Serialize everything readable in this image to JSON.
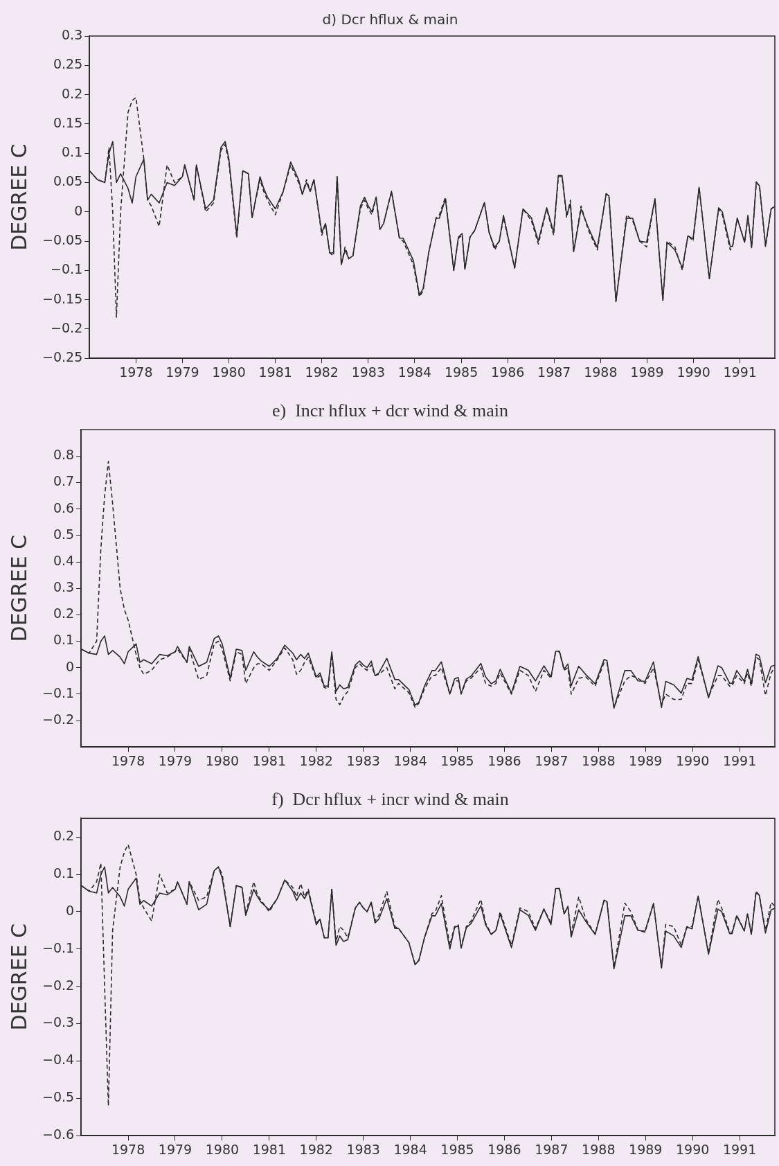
{
  "chart_data": [
    {
      "type": "line",
      "title": "d) Dcr hflux & main",
      "ylabel": "DEGREE C",
      "xlim": [
        1977,
        1991.75
      ],
      "xticks": [
        1978,
        1979,
        1980,
        1981,
        1982,
        1983,
        1984,
        1985,
        1986,
        1987,
        1988,
        1989,
        1990,
        1991
      ],
      "ylim": [
        -0.25,
        0.3
      ],
      "yticks": [
        -0.25,
        -0.2,
        -0.15,
        -0.1,
        -0.05,
        0,
        0.05,
        0.1,
        0.15,
        0.2,
        0.25,
        0.3
      ],
      "grid": false,
      "legend": false,
      "marker": "none",
      "x": [
        1977.0,
        1977.17,
        1977.33,
        1977.42,
        1977.5,
        1977.58,
        1977.67,
        1977.83,
        1977.92,
        1978.0,
        1978.17,
        1978.25,
        1978.33,
        1978.5,
        1978.67,
        1978.83,
        1979.0,
        1979.05,
        1979.25,
        1979.3,
        1979.5,
        1979.67,
        1979.83,
        1979.92,
        1980.0,
        1980.17,
        1980.3,
        1980.42,
        1980.5,
        1980.67,
        1980.75,
        1980.83,
        1981.0,
        1981.17,
        1981.33,
        1981.5,
        1981.58,
        1981.67,
        1981.75,
        1981.83,
        1982.0,
        1982.08,
        1982.17,
        1982.25,
        1982.33,
        1982.42,
        1982.5,
        1982.58,
        1982.67,
        1982.83,
        1982.92,
        1983.0,
        1983.08,
        1983.17,
        1983.25,
        1983.33,
        1983.5,
        1983.67,
        1983.75,
        1983.97,
        1984.1,
        1984.18,
        1984.3,
        1984.46,
        1984.53,
        1984.66,
        1984.84,
        1984.94,
        1985.02,
        1985.08,
        1985.19,
        1985.29,
        1985.5,
        1985.6,
        1985.72,
        1985.82,
        1985.91,
        1986.15,
        1986.33,
        1986.51,
        1986.66,
        1986.84,
        1986.99,
        1987.09,
        1987.17,
        1987.27,
        1987.35,
        1987.42,
        1987.58,
        1987.73,
        1987.93,
        1988.12,
        1988.18,
        1988.33,
        1988.56,
        1988.69,
        1988.84,
        1988.99,
        1989.17,
        1989.34,
        1989.43,
        1989.6,
        1989.76,
        1989.88,
        1989.99,
        1990.12,
        1990.34,
        1990.54,
        1990.62,
        1990.79,
        1990.84,
        1990.94,
        1991.1,
        1991.17,
        1991.25,
        1991.35,
        1991.42,
        1991.55,
        1991.67,
        1991.75
      ],
      "series": [
        {
          "color": "#2a2a2a",
          "line_style": "solid",
          "values": [
            0.07,
            0.055,
            0.05,
            0.1,
            0.12,
            0.05,
            0.065,
            0.04,
            0.015,
            0.06,
            0.09,
            0.02,
            0.03,
            0.015,
            0.05,
            0.045,
            0.06,
            0.08,
            0.02,
            0.08,
            0.005,
            0.02,
            0.11,
            0.12,
            0.09,
            -0.04,
            0.07,
            0.065,
            -0.01,
            0.06,
            0.04,
            0.025,
            0.005,
            0.035,
            0.085,
            0.055,
            0.03,
            0.05,
            0.035,
            0.055,
            -0.035,
            -0.02,
            -0.07,
            -0.07,
            0.06,
            -0.09,
            -0.065,
            -0.08,
            -0.075,
            0.01,
            0.025,
            0.01,
            0,
            0.025,
            -0.03,
            -0.02,
            0.035,
            -0.045,
            -0.045,
            -0.083,
            -0.142,
            -0.131,
            -0.07,
            -0.011,
            -0.011,
            0.022,
            -0.1,
            -0.043,
            -0.037,
            -0.098,
            -0.043,
            -0.032,
            0.016,
            -0.035,
            -0.061,
            -0.05,
            -0.006,
            -0.096,
            0.005,
            -0.01,
            -0.05,
            0.007,
            -0.035,
            0.062,
            0.062,
            -0.006,
            0.014,
            -0.068,
            0.005,
            -0.026,
            -0.061,
            0.031,
            0.027,
            -0.153,
            -0.011,
            -0.011,
            -0.05,
            -0.052,
            0.022,
            -0.151,
            -0.052,
            -0.065,
            -0.096,
            -0.041,
            -0.046,
            0.042,
            -0.114,
            0.007,
            0,
            -0.059,
            -0.059,
            -0.011,
            -0.052,
            -0.006,
            -0.061,
            0.051,
            0.044,
            -0.057,
            0.005,
            0.009
          ]
        },
        {
          "color": "#2a2a2a",
          "line_style": "dashed",
          "values": [
            0.07,
            0.055,
            0.05,
            0.11,
            0.0,
            -0.18,
            0.0,
            0.17,
            0.19,
            0.195,
            0.09,
            0.02,
            0.01,
            -0.025,
            0.08,
            0.05,
            0.06,
            0.08,
            0.02,
            0.08,
            0.0,
            0.015,
            0.105,
            0.115,
            0.085,
            -0.045,
            0.07,
            0.065,
            -0.01,
            0.055,
            0.035,
            0.02,
            -0.005,
            0.035,
            0.08,
            0.05,
            0.03,
            0.055,
            0.035,
            0.055,
            -0.04,
            -0.02,
            -0.07,
            -0.075,
            0.06,
            -0.09,
            -0.06,
            -0.08,
            -0.075,
            0.005,
            0.02,
            0.005,
            -0.005,
            0.025,
            -0.03,
            -0.02,
            0.035,
            -0.045,
            -0.05,
            -0.09,
            -0.145,
            -0.135,
            -0.07,
            -0.01,
            -0.005,
            0.025,
            -0.1,
            -0.045,
            -0.04,
            -0.098,
            -0.043,
            -0.032,
            0.016,
            -0.035,
            -0.065,
            -0.05,
            -0.01,
            -0.096,
            0.005,
            -0.015,
            -0.055,
            0.005,
            -0.04,
            0.06,
            0.06,
            -0.01,
            0.02,
            -0.068,
            0.01,
            -0.03,
            -0.065,
            0.031,
            0.027,
            -0.153,
            -0.005,
            -0.015,
            -0.05,
            -0.06,
            0.022,
            -0.151,
            -0.05,
            -0.06,
            -0.1,
            -0.04,
            -0.05,
            0.042,
            -0.114,
            0.005,
            -0.005,
            -0.065,
            -0.06,
            -0.011,
            -0.052,
            -0.01,
            -0.061,
            0.05,
            0.044,
            -0.06,
            0.005,
            0.01
          ]
        }
      ]
    },
    {
      "type": "line",
      "title": "e)  Incr hflux + dcr wind & main",
      "ylabel": "DEGREE C",
      "xlim": [
        1977,
        1991.75
      ],
      "xticks": [
        1978,
        1979,
        1980,
        1981,
        1982,
        1983,
        1984,
        1985,
        1986,
        1987,
        1988,
        1989,
        1990,
        1991
      ],
      "ylim": [
        -0.3,
        0.9
      ],
      "yticks": [
        -0.2,
        -0.1,
        0,
        0.1,
        0.2,
        0.3,
        0.4,
        0.5,
        0.6,
        0.7,
        0.8
      ],
      "grid": false,
      "legend": false,
      "marker": "none",
      "x": [
        1977.0,
        1977.17,
        1977.33,
        1977.42,
        1977.5,
        1977.58,
        1977.67,
        1977.83,
        1977.92,
        1978.0,
        1978.17,
        1978.25,
        1978.33,
        1978.5,
        1978.67,
        1978.83,
        1979.0,
        1979.05,
        1979.25,
        1979.3,
        1979.5,
        1979.67,
        1979.83,
        1979.92,
        1980.0,
        1980.17,
        1980.3,
        1980.42,
        1980.5,
        1980.67,
        1980.75,
        1980.83,
        1981.0,
        1981.17,
        1981.33,
        1981.5,
        1981.58,
        1981.67,
        1981.75,
        1981.83,
        1982.0,
        1982.08,
        1982.17,
        1982.25,
        1982.33,
        1982.42,
        1982.5,
        1982.58,
        1982.67,
        1982.83,
        1982.92,
        1983.0,
        1983.08,
        1983.17,
        1983.25,
        1983.33,
        1983.5,
        1983.67,
        1983.75,
        1983.97,
        1984.1,
        1984.18,
        1984.3,
        1984.46,
        1984.53,
        1984.66,
        1984.84,
        1984.94,
        1985.02,
        1985.08,
        1985.19,
        1985.29,
        1985.5,
        1985.6,
        1985.72,
        1985.82,
        1985.91,
        1986.15,
        1986.33,
        1986.51,
        1986.66,
        1986.84,
        1986.99,
        1987.09,
        1987.17,
        1987.27,
        1987.35,
        1987.42,
        1987.58,
        1987.73,
        1987.93,
        1988.12,
        1988.18,
        1988.33,
        1988.56,
        1988.69,
        1988.84,
        1988.99,
        1989.17,
        1989.34,
        1989.43,
        1989.6,
        1989.76,
        1989.88,
        1989.99,
        1990.12,
        1990.34,
        1990.54,
        1990.62,
        1990.79,
        1990.84,
        1990.94,
        1991.1,
        1991.17,
        1991.25,
        1991.35,
        1991.42,
        1991.55,
        1991.67,
        1991.75
      ],
      "series": [
        {
          "color": "#2a2a2a",
          "line_style": "solid",
          "values": [
            0.07,
            0.055,
            0.05,
            0.1,
            0.12,
            0.05,
            0.065,
            0.04,
            0.015,
            0.06,
            0.09,
            0.02,
            0.03,
            0.015,
            0.05,
            0.045,
            0.06,
            0.08,
            0.02,
            0.08,
            0.005,
            0.02,
            0.11,
            0.12,
            0.09,
            -0.04,
            0.07,
            0.065,
            -0.01,
            0.06,
            0.04,
            0.025,
            0.005,
            0.035,
            0.085,
            0.055,
            0.03,
            0.05,
            0.035,
            0.055,
            -0.035,
            -0.02,
            -0.07,
            -0.07,
            0.06,
            -0.09,
            -0.065,
            -0.08,
            -0.075,
            0.01,
            0.025,
            0.01,
            0,
            0.025,
            -0.03,
            -0.02,
            0.035,
            -0.045,
            -0.045,
            -0.083,
            -0.142,
            -0.131,
            -0.07,
            -0.011,
            -0.011,
            0.022,
            -0.1,
            -0.043,
            -0.037,
            -0.098,
            -0.043,
            -0.032,
            0.016,
            -0.035,
            -0.061,
            -0.05,
            -0.006,
            -0.096,
            0.005,
            -0.01,
            -0.05,
            0.007,
            -0.035,
            0.062,
            0.062,
            -0.006,
            0.014,
            -0.068,
            0.005,
            -0.026,
            -0.061,
            0.031,
            0.027,
            -0.153,
            -0.011,
            -0.011,
            -0.05,
            -0.052,
            0.022,
            -0.151,
            -0.052,
            -0.065,
            -0.096,
            -0.041,
            -0.046,
            0.042,
            -0.114,
            0.007,
            0,
            -0.059,
            -0.059,
            -0.011,
            -0.052,
            -0.006,
            -0.061,
            0.051,
            0.044,
            -0.057,
            0.005,
            0.009
          ]
        },
        {
          "color": "#2a2a2a",
          "line_style": "dashed",
          "values": [
            0.07,
            0.055,
            0.1,
            0.45,
            0.65,
            0.78,
            0.62,
            0.3,
            0.22,
            0.18,
            0.05,
            0.0,
            -0.025,
            -0.01,
            0.03,
            0.04,
            0.06,
            0.07,
            0.02,
            0.07,
            -0.045,
            -0.03,
            0.09,
            0.1,
            0.07,
            -0.05,
            0.06,
            0.05,
            -0.06,
            0.0,
            0.015,
            0.015,
            -0.01,
            0.03,
            0.075,
            0.03,
            -0.025,
            -0.01,
            0.02,
            0.04,
            -0.04,
            -0.03,
            -0.075,
            -0.08,
            0.05,
            -0.12,
            -0.14,
            -0.11,
            -0.09,
            0.0,
            0.015,
            0.0,
            -0.01,
            0.01,
            -0.03,
            -0.025,
            0.0,
            -0.08,
            -0.06,
            -0.095,
            -0.15,
            -0.135,
            -0.08,
            -0.03,
            -0.03,
            0.0,
            -0.1,
            -0.05,
            -0.05,
            -0.1,
            -0.05,
            -0.04,
            0.0,
            -0.06,
            -0.07,
            -0.06,
            -0.02,
            -0.1,
            -0.01,
            -0.03,
            -0.09,
            -0.01,
            -0.04,
            0.06,
            0.06,
            -0.01,
            0.0,
            -0.1,
            -0.04,
            -0.035,
            -0.07,
            0.02,
            0.02,
            -0.15,
            -0.05,
            -0.03,
            -0.04,
            -0.06,
            0.0,
            -0.14,
            -0.1,
            -0.12,
            -0.12,
            -0.06,
            -0.06,
            0.03,
            -0.11,
            -0.03,
            -0.03,
            -0.07,
            -0.07,
            -0.03,
            -0.06,
            -0.02,
            -0.07,
            0.04,
            0.03,
            -0.105,
            -0.02,
            0.0
          ]
        }
      ]
    },
    {
      "type": "line",
      "title": "f)  Dcr hflux + incr wind & main",
      "ylabel": "DEGREE C",
      "xlim": [
        1977,
        1991.75
      ],
      "xticks": [
        1978,
        1979,
        1980,
        1981,
        1982,
        1983,
        1984,
        1985,
        1986,
        1987,
        1988,
        1989,
        1990,
        1991
      ],
      "ylim": [
        -0.6,
        0.25
      ],
      "yticks": [
        -0.6,
        -0.5,
        -0.4,
        -0.3,
        -0.2,
        -0.1,
        0,
        0.1,
        0.2
      ],
      "grid": false,
      "legend": false,
      "marker": "none",
      "x": [
        1977.0,
        1977.17,
        1977.33,
        1977.42,
        1977.5,
        1977.58,
        1977.67,
        1977.83,
        1977.92,
        1978.0,
        1978.17,
        1978.25,
        1978.33,
        1978.5,
        1978.67,
        1978.83,
        1979.0,
        1979.05,
        1979.25,
        1979.3,
        1979.5,
        1979.67,
        1979.83,
        1979.92,
        1980.0,
        1980.17,
        1980.3,
        1980.42,
        1980.5,
        1980.67,
        1980.75,
        1980.83,
        1981.0,
        1981.17,
        1981.33,
        1981.5,
        1981.58,
        1981.67,
        1981.75,
        1981.83,
        1982.0,
        1982.08,
        1982.17,
        1982.25,
        1982.33,
        1982.42,
        1982.5,
        1982.58,
        1982.67,
        1982.83,
        1982.92,
        1983.0,
        1983.08,
        1983.17,
        1983.25,
        1983.33,
        1983.5,
        1983.67,
        1983.75,
        1983.97,
        1984.1,
        1984.18,
        1984.3,
        1984.46,
        1984.53,
        1984.66,
        1984.84,
        1984.94,
        1985.02,
        1985.08,
        1985.19,
        1985.29,
        1985.5,
        1985.6,
        1985.72,
        1985.82,
        1985.91,
        1986.15,
        1986.33,
        1986.51,
        1986.66,
        1986.84,
        1986.99,
        1987.09,
        1987.17,
        1987.27,
        1987.35,
        1987.42,
        1987.58,
        1987.73,
        1987.93,
        1988.12,
        1988.18,
        1988.33,
        1988.56,
        1988.69,
        1988.84,
        1988.99,
        1989.17,
        1989.34,
        1989.43,
        1989.6,
        1989.76,
        1989.88,
        1989.99,
        1990.12,
        1990.34,
        1990.54,
        1990.62,
        1990.79,
        1990.84,
        1990.94,
        1991.1,
        1991.17,
        1991.25,
        1991.35,
        1991.42,
        1991.55,
        1991.67,
        1991.75
      ],
      "series": [
        {
          "color": "#2a2a2a",
          "line_style": "solid",
          "values": [
            0.07,
            0.055,
            0.05,
            0.1,
            0.12,
            0.05,
            0.065,
            0.04,
            0.015,
            0.06,
            0.09,
            0.02,
            0.03,
            0.015,
            0.05,
            0.045,
            0.06,
            0.08,
            0.02,
            0.08,
            0.005,
            0.02,
            0.11,
            0.12,
            0.09,
            -0.04,
            0.07,
            0.065,
            -0.01,
            0.06,
            0.04,
            0.025,
            0.005,
            0.035,
            0.085,
            0.055,
            0.03,
            0.05,
            0.035,
            0.055,
            -0.035,
            -0.02,
            -0.07,
            -0.07,
            0.06,
            -0.09,
            -0.065,
            -0.08,
            -0.075,
            0.01,
            0.025,
            0.01,
            0,
            0.025,
            -0.03,
            -0.02,
            0.035,
            -0.045,
            -0.045,
            -0.083,
            -0.142,
            -0.131,
            -0.07,
            -0.011,
            -0.011,
            0.022,
            -0.1,
            -0.043,
            -0.037,
            -0.098,
            -0.043,
            -0.032,
            0.016,
            -0.035,
            -0.061,
            -0.05,
            -0.006,
            -0.096,
            0.005,
            -0.01,
            -0.05,
            0.007,
            -0.035,
            0.062,
            0.062,
            -0.006,
            0.014,
            -0.068,
            0.005,
            -0.026,
            -0.061,
            0.031,
            0.027,
            -0.153,
            -0.011,
            -0.011,
            -0.05,
            -0.052,
            0.022,
            -0.151,
            -0.052,
            -0.065,
            -0.096,
            -0.041,
            -0.046,
            0.042,
            -0.114,
            0.007,
            0,
            -0.059,
            -0.059,
            -0.011,
            -0.052,
            -0.006,
            -0.061,
            0.051,
            0.044,
            -0.057,
            0.005,
            0.009
          ]
        },
        {
          "color": "#2a2a2a",
          "line_style": "dashed",
          "values": [
            0.07,
            0.055,
            0.08,
            0.13,
            -0.2,
            -0.52,
            -0.05,
            0.12,
            0.16,
            0.18,
            0.1,
            0.03,
            0.01,
            -0.025,
            0.1,
            0.05,
            0.06,
            0.08,
            0.02,
            0.08,
            0.03,
            0.04,
            0.11,
            0.12,
            0.1,
            -0.04,
            0.07,
            0.065,
            -0.005,
            0.08,
            0.045,
            0.03,
            0.0,
            0.035,
            0.085,
            0.065,
            0.04,
            0.075,
            0.04,
            0.06,
            -0.03,
            -0.02,
            -0.07,
            -0.07,
            0.06,
            -0.08,
            -0.04,
            -0.05,
            -0.07,
            0.01,
            0.025,
            0.01,
            0.0,
            0.025,
            -0.025,
            -0.01,
            0.055,
            -0.04,
            -0.045,
            -0.083,
            -0.14,
            -0.13,
            -0.07,
            -0.005,
            0.0,
            0.043,
            -0.09,
            -0.04,
            -0.035,
            -0.095,
            -0.04,
            -0.025,
            0.033,
            -0.03,
            -0.06,
            -0.05,
            0.0,
            -0.09,
            0.01,
            0.0,
            -0.045,
            0.007,
            -0.03,
            0.062,
            0.062,
            -0.006,
            0.014,
            -0.06,
            0.04,
            -0.02,
            -0.06,
            0.031,
            0.027,
            -0.15,
            0.023,
            0.0,
            -0.05,
            -0.055,
            0.022,
            -0.15,
            -0.034,
            -0.04,
            -0.09,
            -0.04,
            -0.04,
            0.042,
            -0.11,
            0.033,
            0.01,
            -0.055,
            -0.055,
            -0.01,
            -0.05,
            -0.005,
            -0.06,
            0.055,
            0.044,
            -0.05,
            0.025,
            0.015
          ]
        }
      ]
    }
  ]
}
